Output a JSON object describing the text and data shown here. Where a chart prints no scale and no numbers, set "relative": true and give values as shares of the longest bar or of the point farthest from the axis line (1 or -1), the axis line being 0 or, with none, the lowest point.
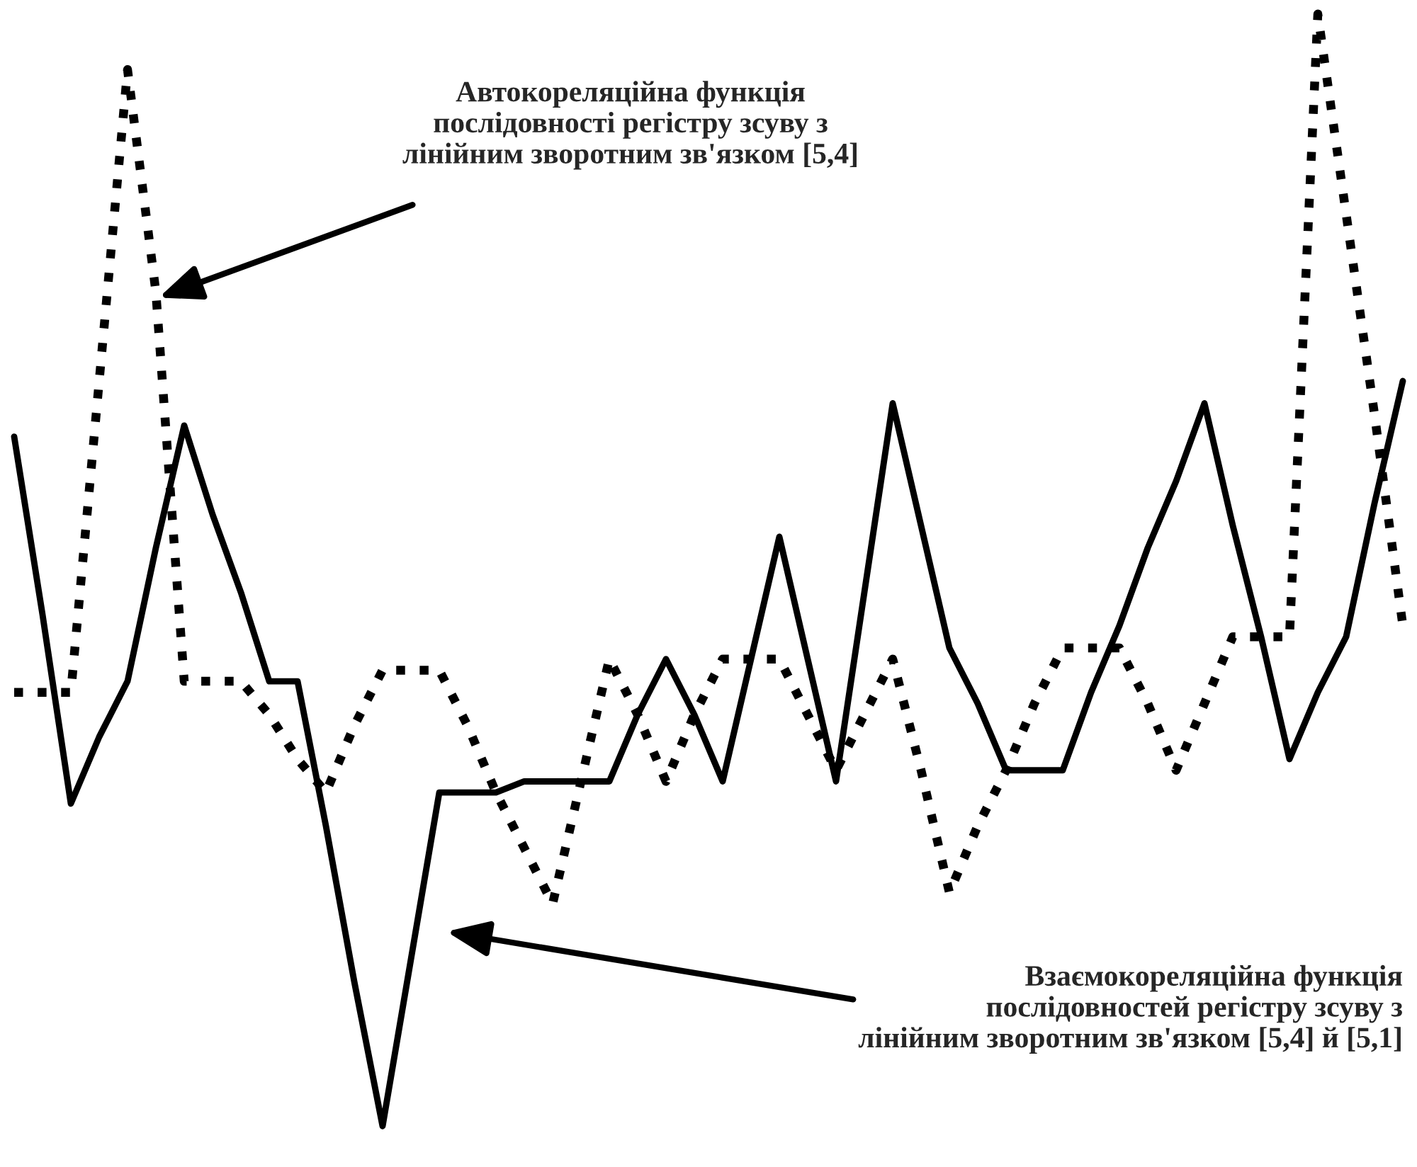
{
  "chart_data": {
    "type": "line",
    "relative": true,
    "categories": [
      null,
      null,
      null,
      null,
      null,
      null,
      null,
      null,
      null,
      null,
      null,
      null,
      null,
      null,
      null,
      null,
      null,
      null,
      null,
      null,
      null,
      null,
      null,
      null,
      null,
      null,
      null,
      null,
      null,
      null,
      null,
      null,
      null,
      null,
      null,
      null,
      null,
      null,
      null,
      null,
      null,
      null,
      null,
      null,
      null,
      null,
      null,
      null,
      null,
      null
    ],
    "series": [
      {
        "color": "#000000",
        "line_style": "solid",
        "values": [
          0.62,
          0.46,
          0.29,
          0.35,
          0.4,
          0.52,
          0.63,
          0.55,
          0.48,
          0.4,
          0.4,
          0.27,
          0.13,
          0,
          0.15,
          0.3,
          0.3,
          0.3,
          0.31,
          0.31,
          0.31,
          0.31,
          0.37,
          0.42,
          0.37,
          0.31,
          0.42,
          0.53,
          0.42,
          0.31,
          0.48,
          0.65,
          0.54,
          0.43,
          0.38,
          0.32,
          0.32,
          0.32,
          0.39,
          0.45,
          0.52,
          0.58,
          0.65,
          0.54,
          0.44,
          0.33,
          0.39,
          0.44,
          0.56,
          0.67
        ]
      },
      {
        "color": "#000000",
        "line_style": "dotted",
        "values": [
          0.39,
          0.39,
          0.39,
          0.67,
          0.95,
          0.75,
          0.4,
          0.4,
          0.4,
          0.37,
          0.33,
          0.3,
          0.36,
          0.41,
          0.41,
          0.41,
          0.36,
          0.3,
          0.25,
          0.2,
          0.31,
          0.42,
          0.37,
          0.31,
          0.37,
          0.42,
          0.42,
          0.42,
          0.37,
          0.32,
          0.37,
          0.42,
          0.32,
          0.21,
          0.27,
          0.32,
          0.38,
          0.43,
          0.43,
          0.43,
          0.38,
          0.32,
          0.38,
          0.44,
          0.44,
          0.44,
          1,
          0.82,
          0.64,
          0.45
        ]
      }
    ],
    "annotations": [
      "Автокореляційна функція\nпослідовності регістру зсуву з\nлінійним зворотним зв'язком [5,4]",
      "Взаємокореляційна функція\nпослідовностей регістру зсуву з\nлінійним зворотним зв'язком [5,4] й [5,1]"
    ]
  }
}
